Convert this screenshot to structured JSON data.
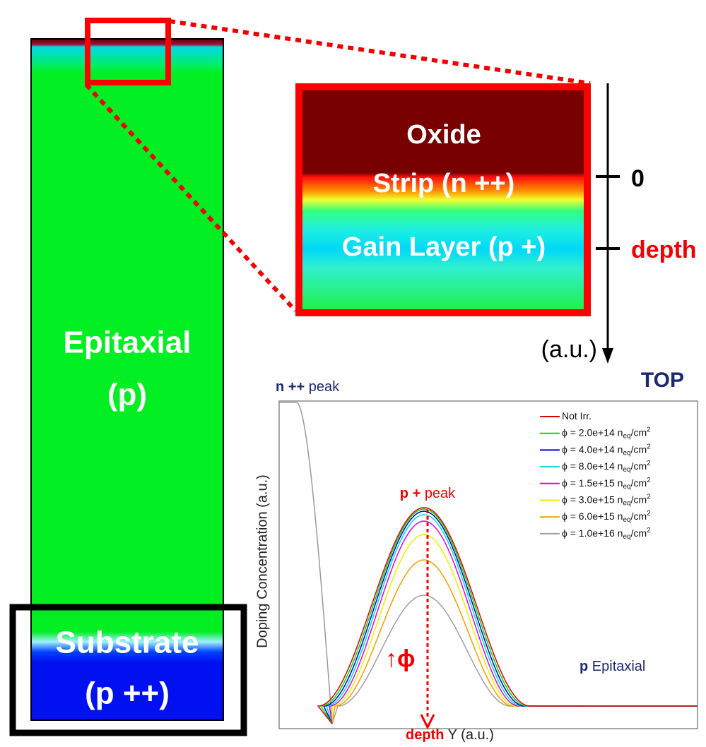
{
  "column": {
    "epitaxial": [
      "Epitaxial",
      "(p)"
    ],
    "substrate": [
      "Substrate",
      "(p ++)"
    ]
  },
  "zoom": {
    "labels": [
      "Oxide",
      "Strip (n ++)",
      "Gain Layer (p +)"
    ],
    "axis": {
      "zero": "0",
      "depth": "depth",
      "unit": "(a.u.)"
    }
  },
  "top": "TOP",
  "plot": {
    "n_peak": {
      "bold": "n ++",
      "text": "peak"
    },
    "p_peak": {
      "bold": "p +",
      "text": "peak"
    },
    "epi": {
      "bold": "p",
      "text": "Epitaxial"
    },
    "phi": "↑ϕ",
    "ylabel": "Doping Concentration (a.u.)",
    "xlabel": {
      "depth": "depth",
      "text": "Y (a.u.)"
    },
    "legend": [
      {
        "label": "Not Irr."
      },
      {
        "prefix": "ϕ = 2.0e+14 n",
        "sub": "eq",
        "unit": "/cm",
        "sup": "2"
      },
      {
        "prefix": "ϕ = 4.0e+14 n",
        "sub": "eq",
        "unit": "/cm",
        "sup": "2"
      },
      {
        "prefix": "ϕ = 8.0e+14 n",
        "sub": "eq",
        "unit": "/cm",
        "sup": "2"
      },
      {
        "prefix": "ϕ = 1.5e+15 n",
        "sub": "eq",
        "unit": "/cm",
        "sup": "2"
      },
      {
        "prefix": "ϕ = 3.0e+15 n",
        "sub": "eq",
        "unit": "/cm",
        "sup": "2"
      },
      {
        "prefix": "ϕ = 6.0e+15 n",
        "sub": "eq",
        "unit": "/cm",
        "sup": "2"
      },
      {
        "prefix": "ϕ = 1.0e+16 n",
        "sub": "eq",
        "unit": "/cm",
        "sup": "2"
      }
    ]
  }
}
